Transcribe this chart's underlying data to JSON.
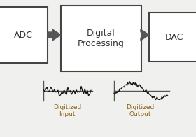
{
  "bg_color": "#f0f0ee",
  "box_color": "#ffffff",
  "box_edge_color": "#444444",
  "text_color": "#333333",
  "label_color": "#8B6010",
  "arrow_color": "#555555",
  "adc_label": "ADC",
  "dac_label": "DAC",
  "center_label": "Digital\nProcessing",
  "bottom_label_left": "Digitized\nInput",
  "bottom_label_right": "Digitized\nOutput",
  "fig_width": 2.8,
  "fig_height": 1.96,
  "dpi": 100
}
